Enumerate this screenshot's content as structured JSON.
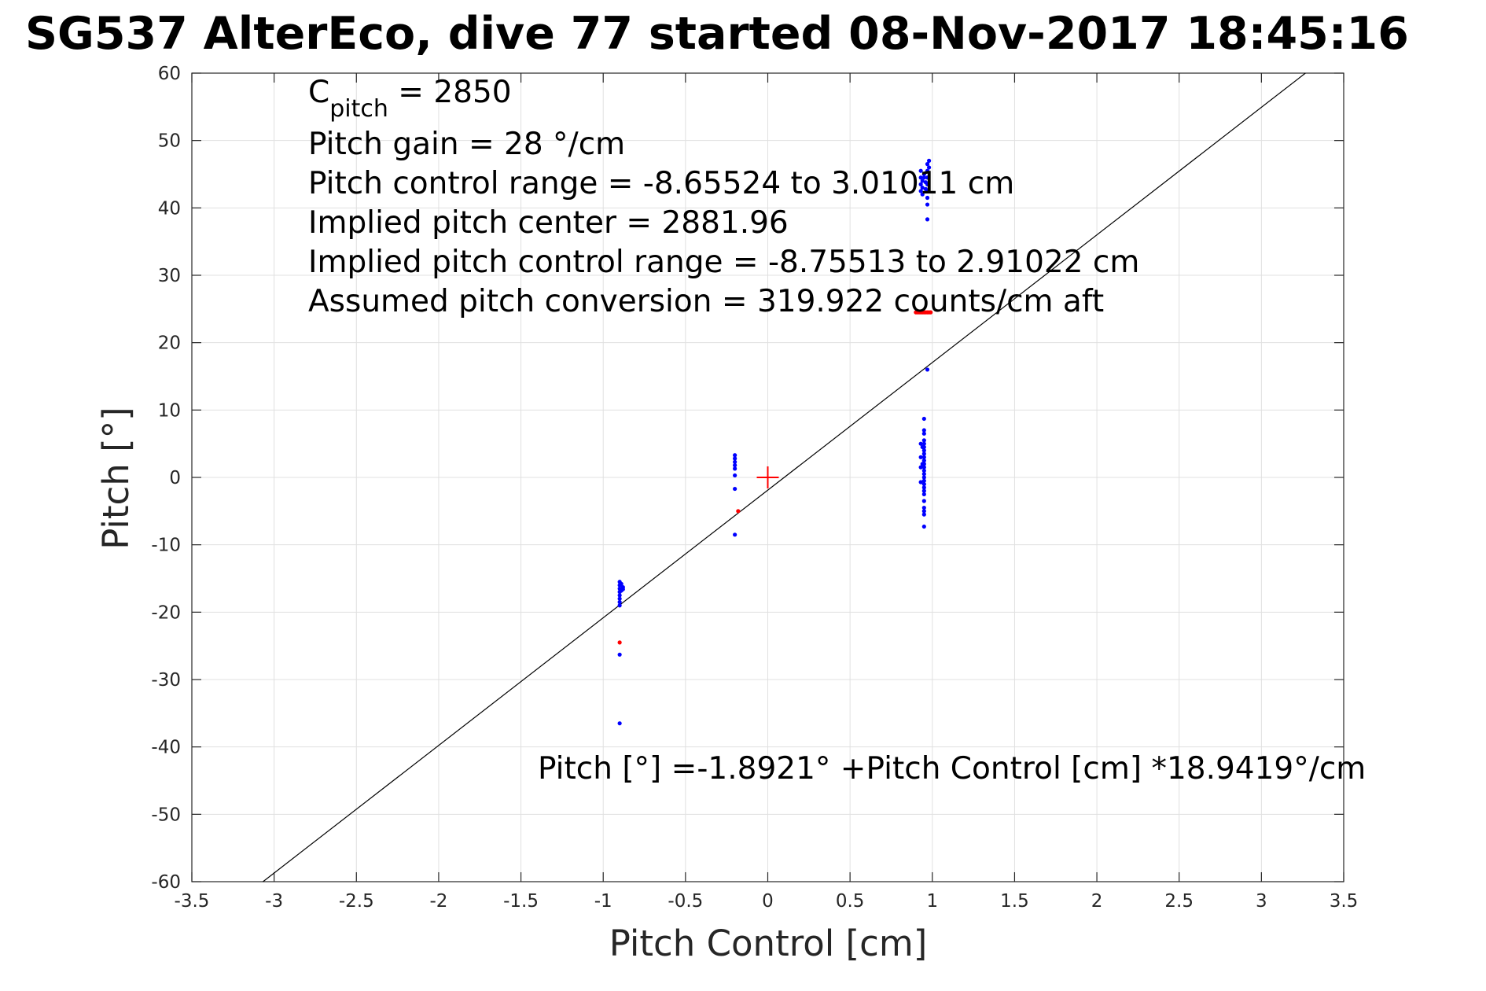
{
  "chart_data": {
    "type": "scatter",
    "title": "SG537 AlterEco, dive 77 started 08-Nov-2017 18:45:16",
    "xlabel": "Pitch Control [cm]",
    "ylabel": "Pitch [°]",
    "xlim": [
      -3.5,
      3.5
    ],
    "ylim": [
      -60,
      60
    ],
    "xticks": [
      -3.5,
      -3,
      -2.5,
      -2,
      -1.5,
      -1,
      -0.5,
      0,
      0.5,
      1,
      1.5,
      2,
      2.5,
      3,
      3.5
    ],
    "yticks": [
      -60,
      -50,
      -40,
      -30,
      -20,
      -10,
      0,
      10,
      20,
      30,
      40,
      50,
      60
    ],
    "xtick_labels": [
      "-3.5",
      "-3",
      "-2.5",
      "-2",
      "-1.5",
      "-1",
      "-0.5",
      "0",
      "0.5",
      "1",
      "1.5",
      "2",
      "2.5",
      "3",
      "3.5"
    ],
    "ytick_labels": [
      "-60",
      "-50",
      "-40",
      "-30",
      "-20",
      "-10",
      "0",
      "10",
      "20",
      "30",
      "40",
      "50",
      "60"
    ],
    "grid": true,
    "colors": {
      "blue": "#0000ff",
      "red": "#ff0000",
      "line": "#000000",
      "grid": "#e0e0e0"
    },
    "annotations": {
      "cpitch_main": "C",
      "cpitch_sub": "pitch",
      "cpitch_value": " = 2850",
      "lines": [
        "Pitch gain = 28 °/cm",
        "Pitch control range = -8.65524 to 3.01011 cm",
        "Implied pitch center = 2881.96",
        "Implied pitch control range = -8.75513 to 2.91022 cm",
        "Assumed pitch conversion = 319.922 counts/cm aft"
      ],
      "fit_label": "Pitch [°] =-1.8921° +Pitch Control [cm] *18.9419°/cm"
    },
    "fit_line": {
      "intercept": -1.8921,
      "slope": 18.9419
    },
    "center_marker": {
      "x": 0,
      "y": 0
    },
    "series": [
      {
        "color": "blue",
        "points": [
          [
            -0.9,
            -15.5
          ],
          [
            -0.9,
            -16.0
          ],
          [
            -0.9,
            -16.5
          ],
          [
            -0.9,
            -17.0
          ],
          [
            -0.9,
            -17.5
          ],
          [
            -0.9,
            -18.0
          ],
          [
            -0.9,
            -18.5
          ],
          [
            -0.9,
            -19.0
          ],
          [
            -0.89,
            -15.8
          ],
          [
            -0.89,
            -16.8
          ],
          [
            -0.88,
            -16.3
          ],
          [
            -0.88,
            -16.6
          ],
          [
            -0.9,
            -26.3
          ],
          [
            -0.9,
            -36.5
          ],
          [
            -0.2,
            3.3
          ],
          [
            -0.2,
            2.8
          ],
          [
            -0.2,
            2.3
          ],
          [
            -0.2,
            1.8
          ],
          [
            -0.2,
            1.3
          ],
          [
            -0.2,
            0.3
          ],
          [
            -0.2,
            -1.7
          ],
          [
            -0.2,
            -8.5
          ],
          [
            0.93,
            45.5
          ],
          [
            0.93,
            44.5
          ],
          [
            0.93,
            43.5
          ],
          [
            0.93,
            42.5
          ],
          [
            0.94,
            44.0
          ],
          [
            0.94,
            43.0
          ],
          [
            0.94,
            42.0
          ],
          [
            0.95,
            45.0
          ],
          [
            0.95,
            44.5
          ],
          [
            0.96,
            43.8
          ],
          [
            0.96,
            42.8
          ],
          [
            0.97,
            46.5
          ],
          [
            0.97,
            45.5
          ],
          [
            0.97,
            44.5
          ],
          [
            0.97,
            43.5
          ],
          [
            0.97,
            42.5
          ],
          [
            0.97,
            41.5
          ],
          [
            0.97,
            40.5
          ],
          [
            0.98,
            47.0
          ],
          [
            0.98,
            46.0
          ],
          [
            0.97,
            38.3
          ],
          [
            0.97,
            16.0
          ],
          [
            0.95,
            8.7
          ],
          [
            0.95,
            7.0
          ],
          [
            0.95,
            6.5
          ],
          [
            0.95,
            5.5
          ],
          [
            0.95,
            5.0
          ],
          [
            0.95,
            4.5
          ],
          [
            0.95,
            4.0
          ],
          [
            0.95,
            3.5
          ],
          [
            0.95,
            3.0
          ],
          [
            0.95,
            2.5
          ],
          [
            0.95,
            2.0
          ],
          [
            0.95,
            1.5
          ],
          [
            0.95,
            1.0
          ],
          [
            0.95,
            0.5
          ],
          [
            0.95,
            0.0
          ],
          [
            0.95,
            -0.5
          ],
          [
            0.95,
            -1.0
          ],
          [
            0.95,
            -1.5
          ],
          [
            0.95,
            -2.0
          ],
          [
            0.95,
            -2.5
          ],
          [
            0.95,
            -3.5
          ],
          [
            0.95,
            -4.5
          ],
          [
            0.95,
            -5.0
          ],
          [
            0.95,
            -5.5
          ],
          [
            0.95,
            -7.3
          ],
          [
            0.93,
            5.0
          ],
          [
            0.93,
            3.0
          ],
          [
            0.93,
            1.5
          ],
          [
            0.93,
            -0.7
          ],
          [
            0.94,
            4.5
          ],
          [
            0.94,
            2.0
          ]
        ]
      },
      {
        "color": "red",
        "points": [
          [
            -0.9,
            -24.5
          ],
          [
            -0.18,
            -5.0
          ],
          [
            0.9,
            24.5
          ],
          [
            0.91,
            24.5
          ],
          [
            0.92,
            24.5
          ],
          [
            0.93,
            24.5
          ],
          [
            0.94,
            24.5
          ],
          [
            0.95,
            24.5
          ],
          [
            0.96,
            24.5
          ],
          [
            0.97,
            24.5
          ],
          [
            0.98,
            24.5
          ],
          [
            0.99,
            24.5
          ]
        ]
      }
    ]
  }
}
